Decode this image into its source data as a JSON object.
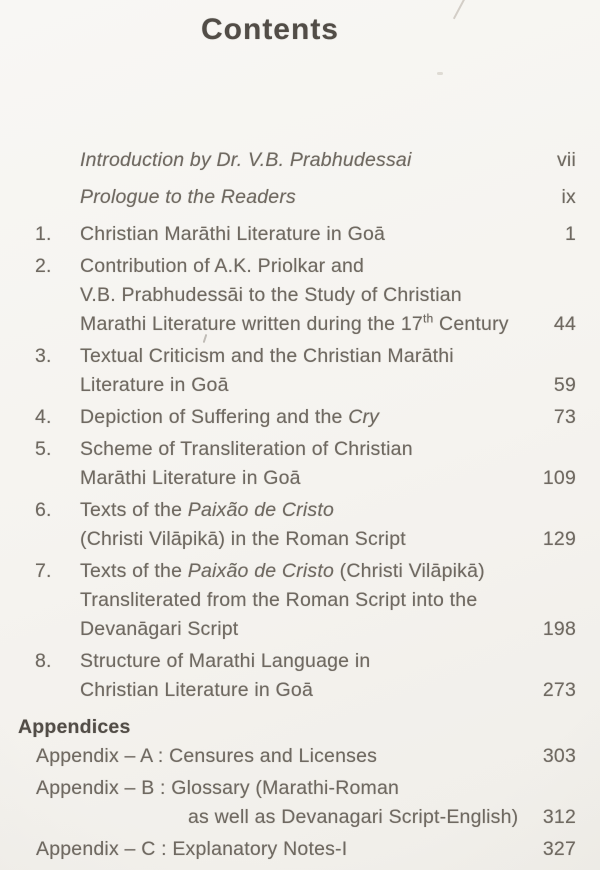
{
  "title": "Contents",
  "colors": {
    "paper": "#f5f3ef",
    "ink": "#6f6961",
    "heading_ink": "#524d47"
  },
  "front_matter": [
    {
      "page": "vii",
      "lines": [
        {
          "seg": [
            {
              "t": "Introduction by Dr. V.B. Prabhudessai",
              "s": "it"
            }
          ]
        }
      ]
    },
    {
      "page": "ix",
      "lines": [
        {
          "seg": [
            {
              "t": "Prologue to the Readers",
              "s": "it"
            }
          ]
        }
      ]
    }
  ],
  "chapters": [
    {
      "num": "1.",
      "page": "1",
      "lines": [
        {
          "seg": [
            {
              "t": "Christian Marāthi Literature in Goā"
            }
          ]
        }
      ]
    },
    {
      "num": "2.",
      "page": "44",
      "lines": [
        {
          "seg": [
            {
              "t": "Contribution of A.K. Priolkar and"
            }
          ]
        },
        {
          "seg": [
            {
              "t": "V.B. Prabhudessāi to the Study of Christian"
            }
          ]
        },
        {
          "seg": [
            {
              "t": "Marathi Literature written during the 17"
            },
            {
              "t": "th",
              "s": "sup"
            },
            {
              "t": " Century"
            }
          ]
        }
      ]
    },
    {
      "num": "3.",
      "page": "59",
      "lines": [
        {
          "seg": [
            {
              "t": "Textual Criticism and the Christian Marāthi"
            }
          ]
        },
        {
          "seg": [
            {
              "t": "Literature in Goā"
            }
          ]
        }
      ]
    },
    {
      "num": "4.",
      "page": "73",
      "lines": [
        {
          "seg": [
            {
              "t": "Depiction of Suffering and the "
            },
            {
              "t": "Cry",
              "s": "it"
            }
          ]
        }
      ]
    },
    {
      "num": "5.",
      "page": "109",
      "lines": [
        {
          "seg": [
            {
              "t": "Scheme of Transliteration of Christian"
            }
          ]
        },
        {
          "seg": [
            {
              "t": "Marāthi Literature in Goā"
            }
          ]
        }
      ]
    },
    {
      "num": "6.",
      "page": "129",
      "lines": [
        {
          "seg": [
            {
              "t": "Texts of the "
            },
            {
              "t": "Paixão de Cristo",
              "s": "it"
            }
          ]
        },
        {
          "seg": [
            {
              "t": "(Christi Vilāpikā) in the Roman Script"
            }
          ]
        }
      ]
    },
    {
      "num": "7.",
      "page": "198",
      "lines": [
        {
          "seg": [
            {
              "t": "Texts of the "
            },
            {
              "t": "Paixão de Cristo",
              "s": "it"
            },
            {
              "t": " (Christi Vilāpikā)"
            }
          ]
        },
        {
          "seg": [
            {
              "t": "Transliterated from the Roman Script into the"
            }
          ]
        },
        {
          "seg": [
            {
              "t": "Devanāgari Script"
            }
          ]
        }
      ]
    },
    {
      "num": "8.",
      "page": "273",
      "lines": [
        {
          "seg": [
            {
              "t": "Structure of Marathi Language in"
            }
          ]
        },
        {
          "seg": [
            {
              "t": "Christian Literature in Goā"
            }
          ]
        }
      ]
    }
  ],
  "appendices": {
    "header": "Appendices",
    "items": [
      {
        "page": "303",
        "lines": [
          {
            "seg": [
              {
                "t": "Appendix – A : Censures and Licenses"
              }
            ]
          }
        ]
      },
      {
        "page": "312",
        "lines": [
          {
            "seg": [
              {
                "t": "Appendix – B : Glossary (Marathi-Roman"
              }
            ]
          },
          {
            "seg": [
              {
                "t": "as well as Devanagari Script-English)"
              }
            ],
            "indent": true
          }
        ]
      },
      {
        "page": "327",
        "lines": [
          {
            "seg": [
              {
                "t": "Appendix – C : Explanatory Notes-I"
              }
            ]
          }
        ]
      }
    ]
  }
}
